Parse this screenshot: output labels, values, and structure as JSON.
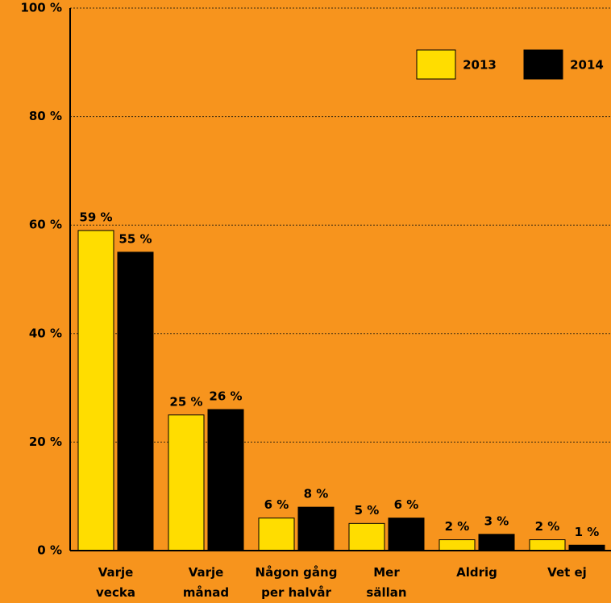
{
  "chart_data": {
    "type": "bar",
    "categories": [
      "Varje\nvecka",
      "Varje\nmånad",
      "Någon gång\nper halvår",
      "Mer\nsällan",
      "Aldrig",
      "Vet ej"
    ],
    "series": [
      {
        "name": "2013",
        "color": "#ffdd00",
        "values": [
          59,
          25,
          6,
          5,
          2,
          2
        ],
        "value_labels": [
          "59 %",
          "25 %",
          "6 %",
          "5 %",
          "2 %",
          "2 %"
        ]
      },
      {
        "name": "2014",
        "color": "#000000",
        "values": [
          55,
          26,
          8,
          6,
          3,
          1
        ],
        "value_labels": [
          "55 %",
          "26 %",
          "8 %",
          "6 %",
          "3 %",
          "1 %"
        ]
      }
    ],
    "ylim": [
      0,
      100
    ],
    "yticks": [
      {
        "value": 0,
        "label": "0 %"
      },
      {
        "value": 20,
        "label": "20 %"
      },
      {
        "value": 40,
        "label": "40 %"
      },
      {
        "value": 60,
        "label": "60 %"
      },
      {
        "value": 80,
        "label": "80 %"
      },
      {
        "value": 100,
        "label": "100 %"
      }
    ],
    "grid": true,
    "legend": "top-right"
  }
}
